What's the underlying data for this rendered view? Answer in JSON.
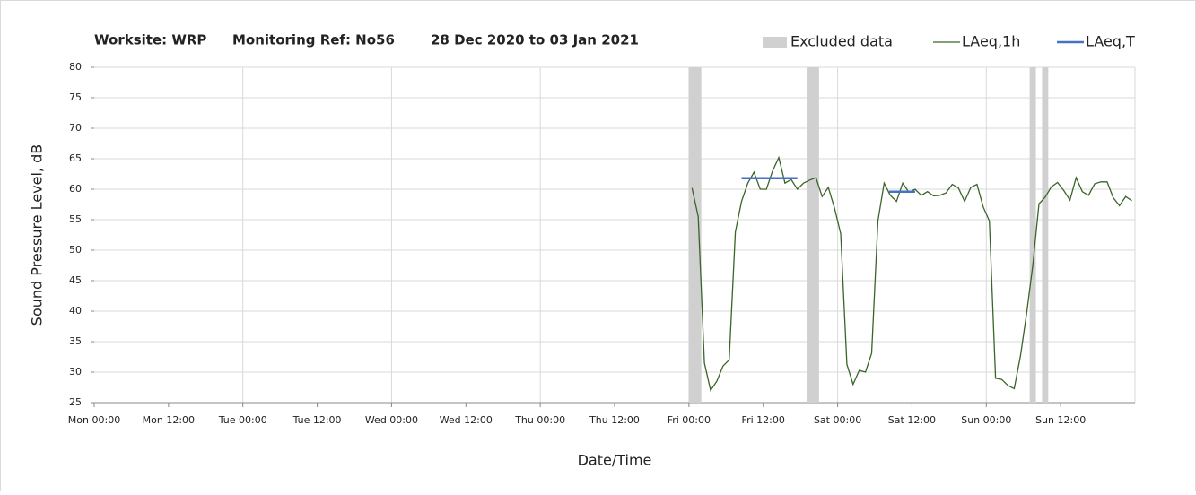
{
  "chart_data": {
    "type": "line",
    "title": [
      "Worksite: WRP",
      "Monitoring Ref: No56",
      "28 Dec 2020 to 03 Jan 2021"
    ],
    "xlabel": "Date/Time",
    "ylabel": "Sound Pressure Level, dB",
    "xlim": [
      0,
      168
    ],
    "ylim": [
      25,
      80
    ],
    "xticks": [
      {
        "value": 0,
        "label": "Mon 00:00"
      },
      {
        "value": 12,
        "label": "Mon 12:00"
      },
      {
        "value": 24,
        "label": "Tue 00:00"
      },
      {
        "value": 36,
        "label": "Tue 12:00"
      },
      {
        "value": 48,
        "label": "Wed 00:00"
      },
      {
        "value": 60,
        "label": "Wed 12:00"
      },
      {
        "value": 72,
        "label": "Thu 00:00"
      },
      {
        "value": 84,
        "label": "Thu 12:00"
      },
      {
        "value": 96,
        "label": "Fri 00:00"
      },
      {
        "value": 108,
        "label": "Fri 12:00"
      },
      {
        "value": 120,
        "label": "Sat 00:00"
      },
      {
        "value": 132,
        "label": "Sat 12:00"
      },
      {
        "value": 144,
        "label": "Sun 00:00"
      },
      {
        "value": 156,
        "label": "Sun 12:00"
      }
    ],
    "xgrid": [
      24,
      48,
      72,
      96,
      120,
      144,
      168
    ],
    "yticks": [
      25,
      30,
      35,
      40,
      45,
      50,
      55,
      60,
      65,
      70,
      75,
      80
    ],
    "grid": true,
    "excluded": {
      "name": "Excluded data",
      "color": "#d0d0d0",
      "ranges": [
        [
          96,
          98
        ],
        [
          115,
          117
        ],
        [
          151,
          152
        ],
        [
          153,
          154
        ]
      ]
    },
    "series": [
      {
        "name": "LAeq,1h",
        "color": "#3a6428",
        "x": [
          96.5,
          97.5,
          98.5,
          99.5,
          100.5,
          101.5,
          102.5,
          103.5,
          104.5,
          105.5,
          106.5,
          107.5,
          108.5,
          109.5,
          110.5,
          111.5,
          112.5,
          113.5,
          114.5,
          115.5,
          116.5,
          117.5,
          118.5,
          119.5,
          120.5,
          121.5,
          122.5,
          123.5,
          124.5,
          125.5,
          126.5,
          127.5,
          128.5,
          129.5,
          130.5,
          131.5,
          132.5,
          133.5,
          134.5,
          135.5,
          136.5,
          137.5,
          138.5,
          139.5,
          140.5,
          141.5,
          142.5,
          143.5,
          144.5,
          145.5,
          146.5,
          147.5,
          148.5,
          149.5,
          150.5,
          151.5,
          152.5,
          153.5,
          154.5,
          155.5,
          156.5,
          157.5,
          158.5,
          159.5,
          160.5,
          161.5,
          162.5,
          163.5,
          164.5,
          165.5,
          166.5,
          167.5
        ],
        "values": [
          60.2,
          55.5,
          31.5,
          27,
          28.5,
          31,
          32,
          53,
          58,
          61,
          62.8,
          60,
          60,
          63,
          65.2,
          61,
          61.6,
          60,
          61,
          61.5,
          61.9,
          58.8,
          60.3,
          56.9,
          52.7,
          31.3,
          28,
          30.3,
          30,
          33.1,
          54.8,
          61,
          59,
          58,
          61,
          59.5,
          60,
          59,
          59.6,
          58.9,
          59,
          59.4,
          60.8,
          60.2,
          58,
          60.3,
          60.8,
          57.1,
          54.8,
          29,
          28.8,
          27.8,
          27.3,
          32.6,
          39.6,
          47.5,
          57.6,
          58.7,
          60.4,
          61.1,
          59.8,
          58.2,
          61.9,
          59.6,
          59,
          60.9,
          61.2,
          61.2,
          58.6,
          57.3,
          58.8,
          58.1
        ]
      },
      {
        "name": "LAeq,T",
        "color": "#4472c4",
        "x": [
          104.5,
          113.5,
          120,
          128.3,
          132.5
        ],
        "values": [
          61.8,
          61.8,
          null,
          59.6,
          59.6
        ]
      }
    ]
  }
}
